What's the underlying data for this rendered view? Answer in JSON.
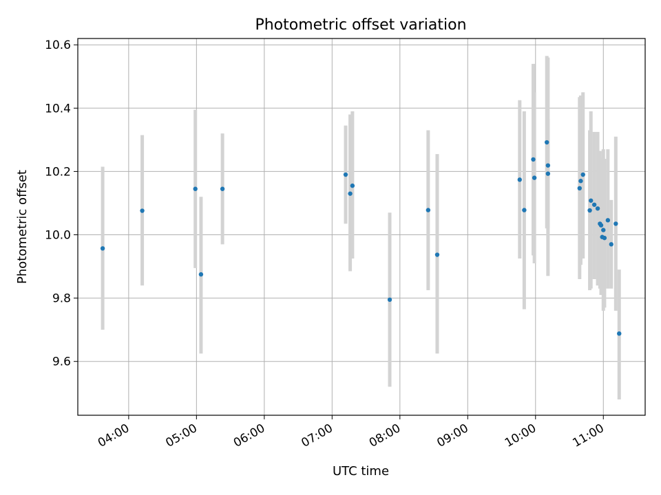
{
  "chart_data": {
    "type": "scatter",
    "title": "Photometric offset variation",
    "xlabel": "UTC time",
    "ylabel": "Photometric offset",
    "grid": true,
    "legend": "none",
    "x_tick_labels": [
      "04:00",
      "05:00",
      "06:00",
      "07:00",
      "08:00",
      "09:00",
      "10:00",
      "11:00"
    ],
    "y_tick_labels": [
      "9.6",
      "9.8",
      "10.0",
      "10.2",
      "10.4",
      "10.6"
    ],
    "xlim": [
      "03:15",
      "11:37"
    ],
    "ylim": [
      9.43,
      10.62
    ],
    "marker_color": "#1f77b4",
    "errorbar_color": "#d3d3d3",
    "points": [
      {
        "x": "03:37",
        "y": 9.957,
        "ylow": 9.7,
        "yhigh": 10.215
      },
      {
        "x": "04:12",
        "y": 10.076,
        "ylow": 9.84,
        "yhigh": 10.315
      },
      {
        "x": "04:59",
        "y": 10.145,
        "ylow": 9.895,
        "yhigh": 10.395
      },
      {
        "x": "05:04",
        "y": 9.875,
        "ylow": 9.625,
        "yhigh": 10.12
      },
      {
        "x": "05:23",
        "y": 10.145,
        "ylow": 9.97,
        "yhigh": 10.32
      },
      {
        "x": "07:12",
        "y": 10.19,
        "ylow": 10.035,
        "yhigh": 10.345
      },
      {
        "x": "07:16",
        "y": 10.13,
        "ylow": 9.885,
        "yhigh": 10.38
      },
      {
        "x": "07:18",
        "y": 10.155,
        "ylow": 9.925,
        "yhigh": 10.39
      },
      {
        "x": "07:51",
        "y": 9.795,
        "ylow": 9.52,
        "yhigh": 10.07
      },
      {
        "x": "08:25",
        "y": 10.078,
        "ylow": 9.825,
        "yhigh": 10.33
      },
      {
        "x": "08:33",
        "y": 9.937,
        "ylow": 9.625,
        "yhigh": 10.255
      },
      {
        "x": "09:46",
        "y": 10.174,
        "ylow": 9.925,
        "yhigh": 10.425
      },
      {
        "x": "09:50",
        "y": 10.078,
        "ylow": 9.765,
        "yhigh": 10.39
      },
      {
        "x": "09:58",
        "y": 10.238,
        "ylow": 9.935,
        "yhigh": 10.54
      },
      {
        "x": "09:59",
        "y": 10.18,
        "ylow": 9.91,
        "yhigh": 10.45
      },
      {
        "x": "10:10",
        "y": 10.292,
        "ylow": 10.02,
        "yhigh": 10.565
      },
      {
        "x": "10:11",
        "y": 10.219,
        "ylow": 9.87,
        "yhigh": 10.56
      },
      {
        "x": "10:11",
        "y": 10.193,
        "ylow": 10.02,
        "yhigh": 10.365
      },
      {
        "x": "10:39",
        "y": 10.147,
        "ylow": 9.86,
        "yhigh": 10.435
      },
      {
        "x": "10:40",
        "y": 10.17,
        "ylow": 9.905,
        "yhigh": 10.44
      },
      {
        "x": "10:42",
        "y": 10.19,
        "ylow": 9.925,
        "yhigh": 10.45
      },
      {
        "x": "10:48",
        "y": 10.077,
        "ylow": 9.825,
        "yhigh": 10.33
      },
      {
        "x": "10:49",
        "y": 10.108,
        "ylow": 9.83,
        "yhigh": 10.39
      },
      {
        "x": "10:52",
        "y": 10.095,
        "ylow": 9.86,
        "yhigh": 10.325
      },
      {
        "x": "10:55",
        "y": 10.083,
        "ylow": 9.84,
        "yhigh": 10.325
      },
      {
        "x": "10:57",
        "y": 10.035,
        "ylow": 9.83,
        "yhigh": 10.265
      },
      {
        "x": "10:58",
        "y": 10.03,
        "ylow": 9.81,
        "yhigh": 10.245
      },
      {
        "x": "10:59",
        "y": 9.993,
        "ylow": 9.83,
        "yhigh": 10.155
      },
      {
        "x": "11:00",
        "y": 10.015,
        "ylow": 9.76,
        "yhigh": 10.27
      },
      {
        "x": "11:01",
        "y": 9.99,
        "ylow": 9.77,
        "yhigh": 10.24
      },
      {
        "x": "11:04",
        "y": 10.046,
        "ylow": 9.83,
        "yhigh": 10.27
      },
      {
        "x": "11:07",
        "y": 9.97,
        "ylow": 9.83,
        "yhigh": 10.11
      },
      {
        "x": "11:11",
        "y": 10.035,
        "ylow": 9.76,
        "yhigh": 10.31
      },
      {
        "x": "11:14",
        "y": 9.688,
        "ylow": 9.48,
        "yhigh": 9.89
      }
    ]
  }
}
